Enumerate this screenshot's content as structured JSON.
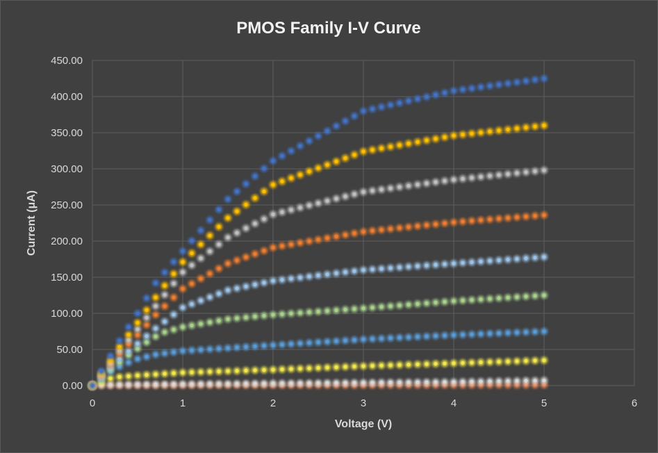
{
  "chart_data": {
    "type": "scatter",
    "title": "PMOS Family I-V Curve",
    "xlabel": "Voltage (V)",
    "ylabel": "Current (μA)",
    "xlim": [
      0,
      6
    ],
    "ylim": [
      0,
      450
    ],
    "xticks": [
      "0",
      "1",
      "2",
      "3",
      "4",
      "5",
      "6"
    ],
    "yticks": [
      "0.00",
      "50.00",
      "100.00",
      "150.00",
      "200.00",
      "250.00",
      "300.00",
      "350.00",
      "400.00",
      "450.00"
    ],
    "grid": true,
    "legend": "none",
    "x_step": 0.1,
    "x_max": 5,
    "series": [
      {
        "color": "#e8865a",
        "anchors": [
          [
            0,
            0
          ],
          [
            0.1,
            0.3
          ],
          [
            1,
            0.4
          ],
          [
            2,
            0.5
          ],
          [
            3,
            0.6
          ],
          [
            4,
            0.8
          ],
          [
            5,
            1
          ]
        ]
      },
      {
        "color": "#d8d8d8",
        "anchors": [
          [
            0,
            0
          ],
          [
            0.1,
            1
          ],
          [
            1,
            2
          ],
          [
            2,
            3
          ],
          [
            3,
            4
          ],
          [
            4,
            5
          ],
          [
            5,
            7
          ]
        ]
      },
      {
        "color": "#f2e84c",
        "anchors": [
          [
            0,
            0
          ],
          [
            0.1,
            5
          ],
          [
            0.2,
            10
          ],
          [
            0.3,
            12
          ],
          [
            0.5,
            14
          ],
          [
            1,
            18
          ],
          [
            2,
            22
          ],
          [
            3,
            27
          ],
          [
            4,
            31
          ],
          [
            5,
            35
          ]
        ]
      },
      {
        "color": "#5b9bd5",
        "anchors": [
          [
            0,
            0
          ],
          [
            0.1,
            9
          ],
          [
            0.2,
            19
          ],
          [
            0.3,
            26
          ],
          [
            0.4,
            32
          ],
          [
            0.5,
            37
          ],
          [
            0.7,
            43
          ],
          [
            1,
            48
          ],
          [
            1.5,
            52
          ],
          [
            2,
            56
          ],
          [
            3,
            64
          ],
          [
            4,
            70
          ],
          [
            5,
            75
          ]
        ]
      },
      {
        "color": "#a9d18e",
        "anchors": [
          [
            0,
            0
          ],
          [
            0.1,
            11
          ],
          [
            0.2,
            22
          ],
          [
            0.3,
            32
          ],
          [
            0.4,
            42
          ],
          [
            0.5,
            51
          ],
          [
            0.6,
            60
          ],
          [
            0.7,
            68
          ],
          [
            0.8,
            74
          ],
          [
            1,
            81
          ],
          [
            1.5,
            92
          ],
          [
            2,
            98
          ],
          [
            3,
            107
          ],
          [
            4,
            117
          ],
          [
            5,
            125
          ]
        ]
      },
      {
        "color": "#9dc3e6",
        "anchors": [
          [
            0,
            0
          ],
          [
            0.1,
            12
          ],
          [
            0.2,
            25
          ],
          [
            0.3,
            37
          ],
          [
            0.5,
            58
          ],
          [
            0.7,
            79
          ],
          [
            1,
            108
          ],
          [
            1.5,
            132
          ],
          [
            2,
            145
          ],
          [
            3,
            160
          ],
          [
            4,
            169
          ],
          [
            5,
            178
          ]
        ]
      },
      {
        "color": "#ed7d31",
        "anchors": [
          [
            0,
            0
          ],
          [
            0.1,
            14
          ],
          [
            0.2,
            29
          ],
          [
            0.3,
            44
          ],
          [
            0.5,
            70
          ],
          [
            0.7,
            98
          ],
          [
            1,
            134
          ],
          [
            1.5,
            169
          ],
          [
            2,
            191
          ],
          [
            3,
            213
          ],
          [
            4,
            226
          ],
          [
            5,
            236
          ]
        ]
      },
      {
        "color": "#bfbfbf",
        "anchors": [
          [
            0,
            0
          ],
          [
            0.1,
            15
          ],
          [
            0.2,
            31
          ],
          [
            0.3,
            48
          ],
          [
            0.5,
            78
          ],
          [
            0.7,
            110
          ],
          [
            1,
            157
          ],
          [
            1.5,
            205
          ],
          [
            2,
            237
          ],
          [
            3,
            268
          ],
          [
            4,
            285
          ],
          [
            5,
            298
          ]
        ]
      },
      {
        "color": "#ffc000",
        "anchors": [
          [
            0,
            0
          ],
          [
            0.1,
            17
          ],
          [
            0.2,
            35
          ],
          [
            0.3,
            54
          ],
          [
            0.5,
            87
          ],
          [
            0.7,
            122
          ],
          [
            1,
            171
          ],
          [
            1.5,
            232
          ],
          [
            2,
            278
          ],
          [
            3,
            324
          ],
          [
            4,
            346
          ],
          [
            5,
            360
          ]
        ]
      },
      {
        "color": "#4472c4",
        "anchors": [
          [
            0,
            0
          ],
          [
            0.1,
            20
          ],
          [
            0.2,
            41
          ],
          [
            0.3,
            62
          ],
          [
            0.5,
            100
          ],
          [
            0.7,
            142
          ],
          [
            1,
            186
          ],
          [
            1.5,
            258
          ],
          [
            2,
            311
          ],
          [
            3,
            380
          ],
          [
            4,
            408
          ],
          [
            5,
            425
          ]
        ]
      }
    ]
  }
}
